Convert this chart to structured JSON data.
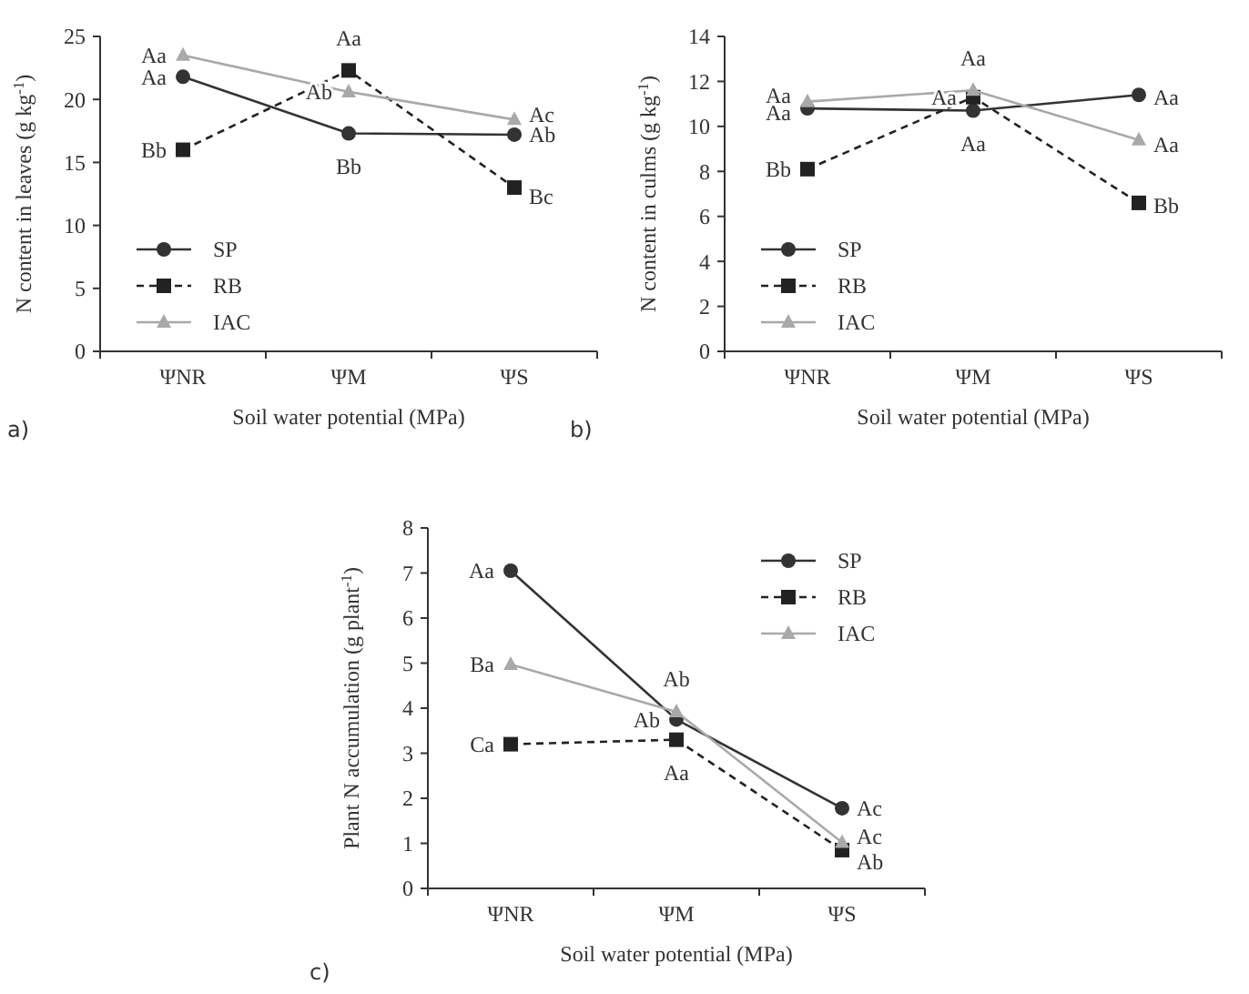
{
  "chart_data": [
    {
      "type": "line",
      "xlabel": "Soil water potential (MPa)",
      "ylabel": "N content in leaves  (g kg$^{-1}$)",
      "categories": [
        "ΨNR",
        "ΨM",
        "ΨS"
      ],
      "ylim": [
        0,
        25
      ],
      "yticks": [
        0,
        5,
        10,
        15,
        20,
        25
      ],
      "grid": false,
      "legend": "bottom left",
      "series": [
        {
          "name": "SP",
          "color": "#333333",
          "marker": "circle",
          "line_style": "solid",
          "values": [
            21.8,
            17.3,
            17.2
          ]
        },
        {
          "name": "RB",
          "color": "#222222",
          "marker": "square",
          "line_style": "dashed",
          "values": [
            16.0,
            22.3,
            13.0
          ]
        },
        {
          "name": "IAC",
          "color": "#a9a9a9",
          "marker": "triangle",
          "line_style": "solid",
          "values": [
            23.5,
            20.6,
            18.4
          ]
        }
      ],
      "annotations": [
        "a)",
        {
          "text": "Aa",
          "x": "ΨNR",
          "y": 23.5
        },
        {
          "text": "Aa",
          "x": "ΨNR",
          "y": 21.8
        },
        {
          "text": "Bb",
          "x": "ΨNR",
          "y": 16.0
        },
        {
          "text": "Aa",
          "x": "ΨM",
          "y": 22.3
        },
        {
          "text": "Ab",
          "x": "ΨM",
          "y": 20.6
        },
        {
          "text": "Bb",
          "x": "ΨM",
          "y": 17.3
        },
        {
          "text": "Ac",
          "x": "ΨS",
          "y": 18.8
        },
        {
          "text": "Ab",
          "x": "ΨS",
          "y": 17.2
        },
        {
          "text": "Bc",
          "x": "ΨS",
          "y": 12.3
        }
      ]
    },
    {
      "type": "line",
      "xlabel": "Soil water potential (MPa)",
      "ylabel": "N content in culms (g kg$^{-1}$)",
      "categories": [
        "ΨNR",
        "ΨM",
        "ΨS"
      ],
      "ylim": [
        0,
        14
      ],
      "yticks": [
        0,
        2,
        4,
        6,
        8,
        10,
        12,
        14
      ],
      "grid": false,
      "legend": "bottom left",
      "series": [
        {
          "name": "SP",
          "color": "#333333",
          "marker": "circle",
          "line_style": "solid",
          "values": [
            10.8,
            10.7,
            11.4
          ]
        },
        {
          "name": "RB",
          "color": "#222222",
          "marker": "square",
          "line_style": "dashed",
          "values": [
            8.1,
            11.3,
            6.6
          ]
        },
        {
          "name": "IAC",
          "color": "#a9a9a9",
          "marker": "triangle",
          "line_style": "solid",
          "values": [
            11.1,
            11.6,
            9.4
          ]
        }
      ],
      "annotations": [
        "b)",
        {
          "text": "Aa",
          "x": "ΨNR",
          "y": 11.4
        },
        {
          "text": "Aa",
          "x": "ΨNR",
          "y": 10.6
        },
        {
          "text": "Bb",
          "x": "ΨNR",
          "y": 8.1
        },
        {
          "text": "Aa",
          "x": "ΨM",
          "y": 11.6
        },
        {
          "text": "Aa",
          "x": "ΨM",
          "y": 11.3
        },
        {
          "text": "Aa",
          "x": "ΨM",
          "y": 10.7
        },
        {
          "text": "Aa",
          "x": "ΨS",
          "y": 11.3
        },
        {
          "text": "Aa",
          "x": "ΨS",
          "y": 9.2
        },
        {
          "text": "Bb",
          "x": "ΨS",
          "y": 6.5
        }
      ]
    },
    {
      "type": "line",
      "xlabel": "Soil water potential (MPa)",
      "ylabel": "Plant N accumulation (g plant$^{-1}$)",
      "categories": [
        "ΨNR",
        "ΨM",
        "ΨS"
      ],
      "ylim": [
        0,
        8
      ],
      "yticks": [
        0,
        1,
        2,
        3,
        4,
        5,
        6,
        7,
        8
      ],
      "grid": false,
      "legend": "top right",
      "series": [
        {
          "name": "SP",
          "color": "#333333",
          "marker": "circle",
          "line_style": "solid",
          "values": [
            7.05,
            3.75,
            1.78
          ]
        },
        {
          "name": "RB",
          "color": "#222222",
          "marker": "square",
          "line_style": "dashed",
          "values": [
            3.2,
            3.3,
            0.85
          ]
        },
        {
          "name": "IAC",
          "color": "#a9a9a9",
          "marker": "triangle",
          "line_style": "solid",
          "values": [
            4.97,
            3.92,
            1.02
          ]
        }
      ],
      "annotations": [
        "c)",
        {
          "text": "Aa",
          "x": "ΨNR",
          "y": 7.05
        },
        {
          "text": "Ba",
          "x": "ΨNR",
          "y": 4.97
        },
        {
          "text": "Ca",
          "x": "ΨNR",
          "y": 3.2
        },
        {
          "text": "Ab",
          "x": "ΨM",
          "y": 3.92
        },
        {
          "text": "Ab",
          "x": "ΨM",
          "y": 3.75
        },
        {
          "text": "Aa",
          "x": "ΨM",
          "y": 3.3
        },
        {
          "text": "Ac",
          "x": "ΨS",
          "y": 1.78
        },
        {
          "text": "Ac",
          "x": "ΨS",
          "y": 1.15
        },
        {
          "text": "Ab",
          "x": "ΨS",
          "y": 0.6
        }
      ]
    }
  ]
}
